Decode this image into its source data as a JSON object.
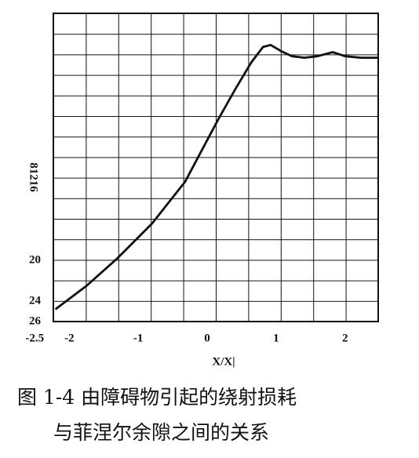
{
  "chart_data": {
    "type": "line",
    "x_label": "X/X|",
    "y_label": "81216",
    "caption": [
      "图 1-4 由障碍物引起的绕射损耗",
      "与菲涅尔余隙之间的关系"
    ],
    "x": [
      -2.2,
      -1.75,
      -1.3,
      -0.8,
      -0.32,
      0.16,
      0.41,
      0.64,
      0.81,
      0.92,
      1.07,
      1.23,
      1.41,
      1.6,
      1.82,
      2.0,
      2.23,
      2.48
    ],
    "series": [
      {
        "color": "#111111",
        "values": [
          24.8,
          22.5,
          19.8,
          16.4,
          12.3,
          6.2,
          3.2,
          0.6,
          -0.9,
          -1.1,
          -0.5,
          0,
          0.15,
          0,
          -0.4,
          0,
          0.15,
          0.15
        ]
      }
    ],
    "xlim": [
      -2.23,
      2.48
    ],
    "ylim": [
      26,
      -4.2
    ],
    "xticks": [
      -2.5,
      -2,
      -1,
      0,
      1,
      2
    ],
    "yticks": [
      20,
      24,
      26
    ]
  }
}
